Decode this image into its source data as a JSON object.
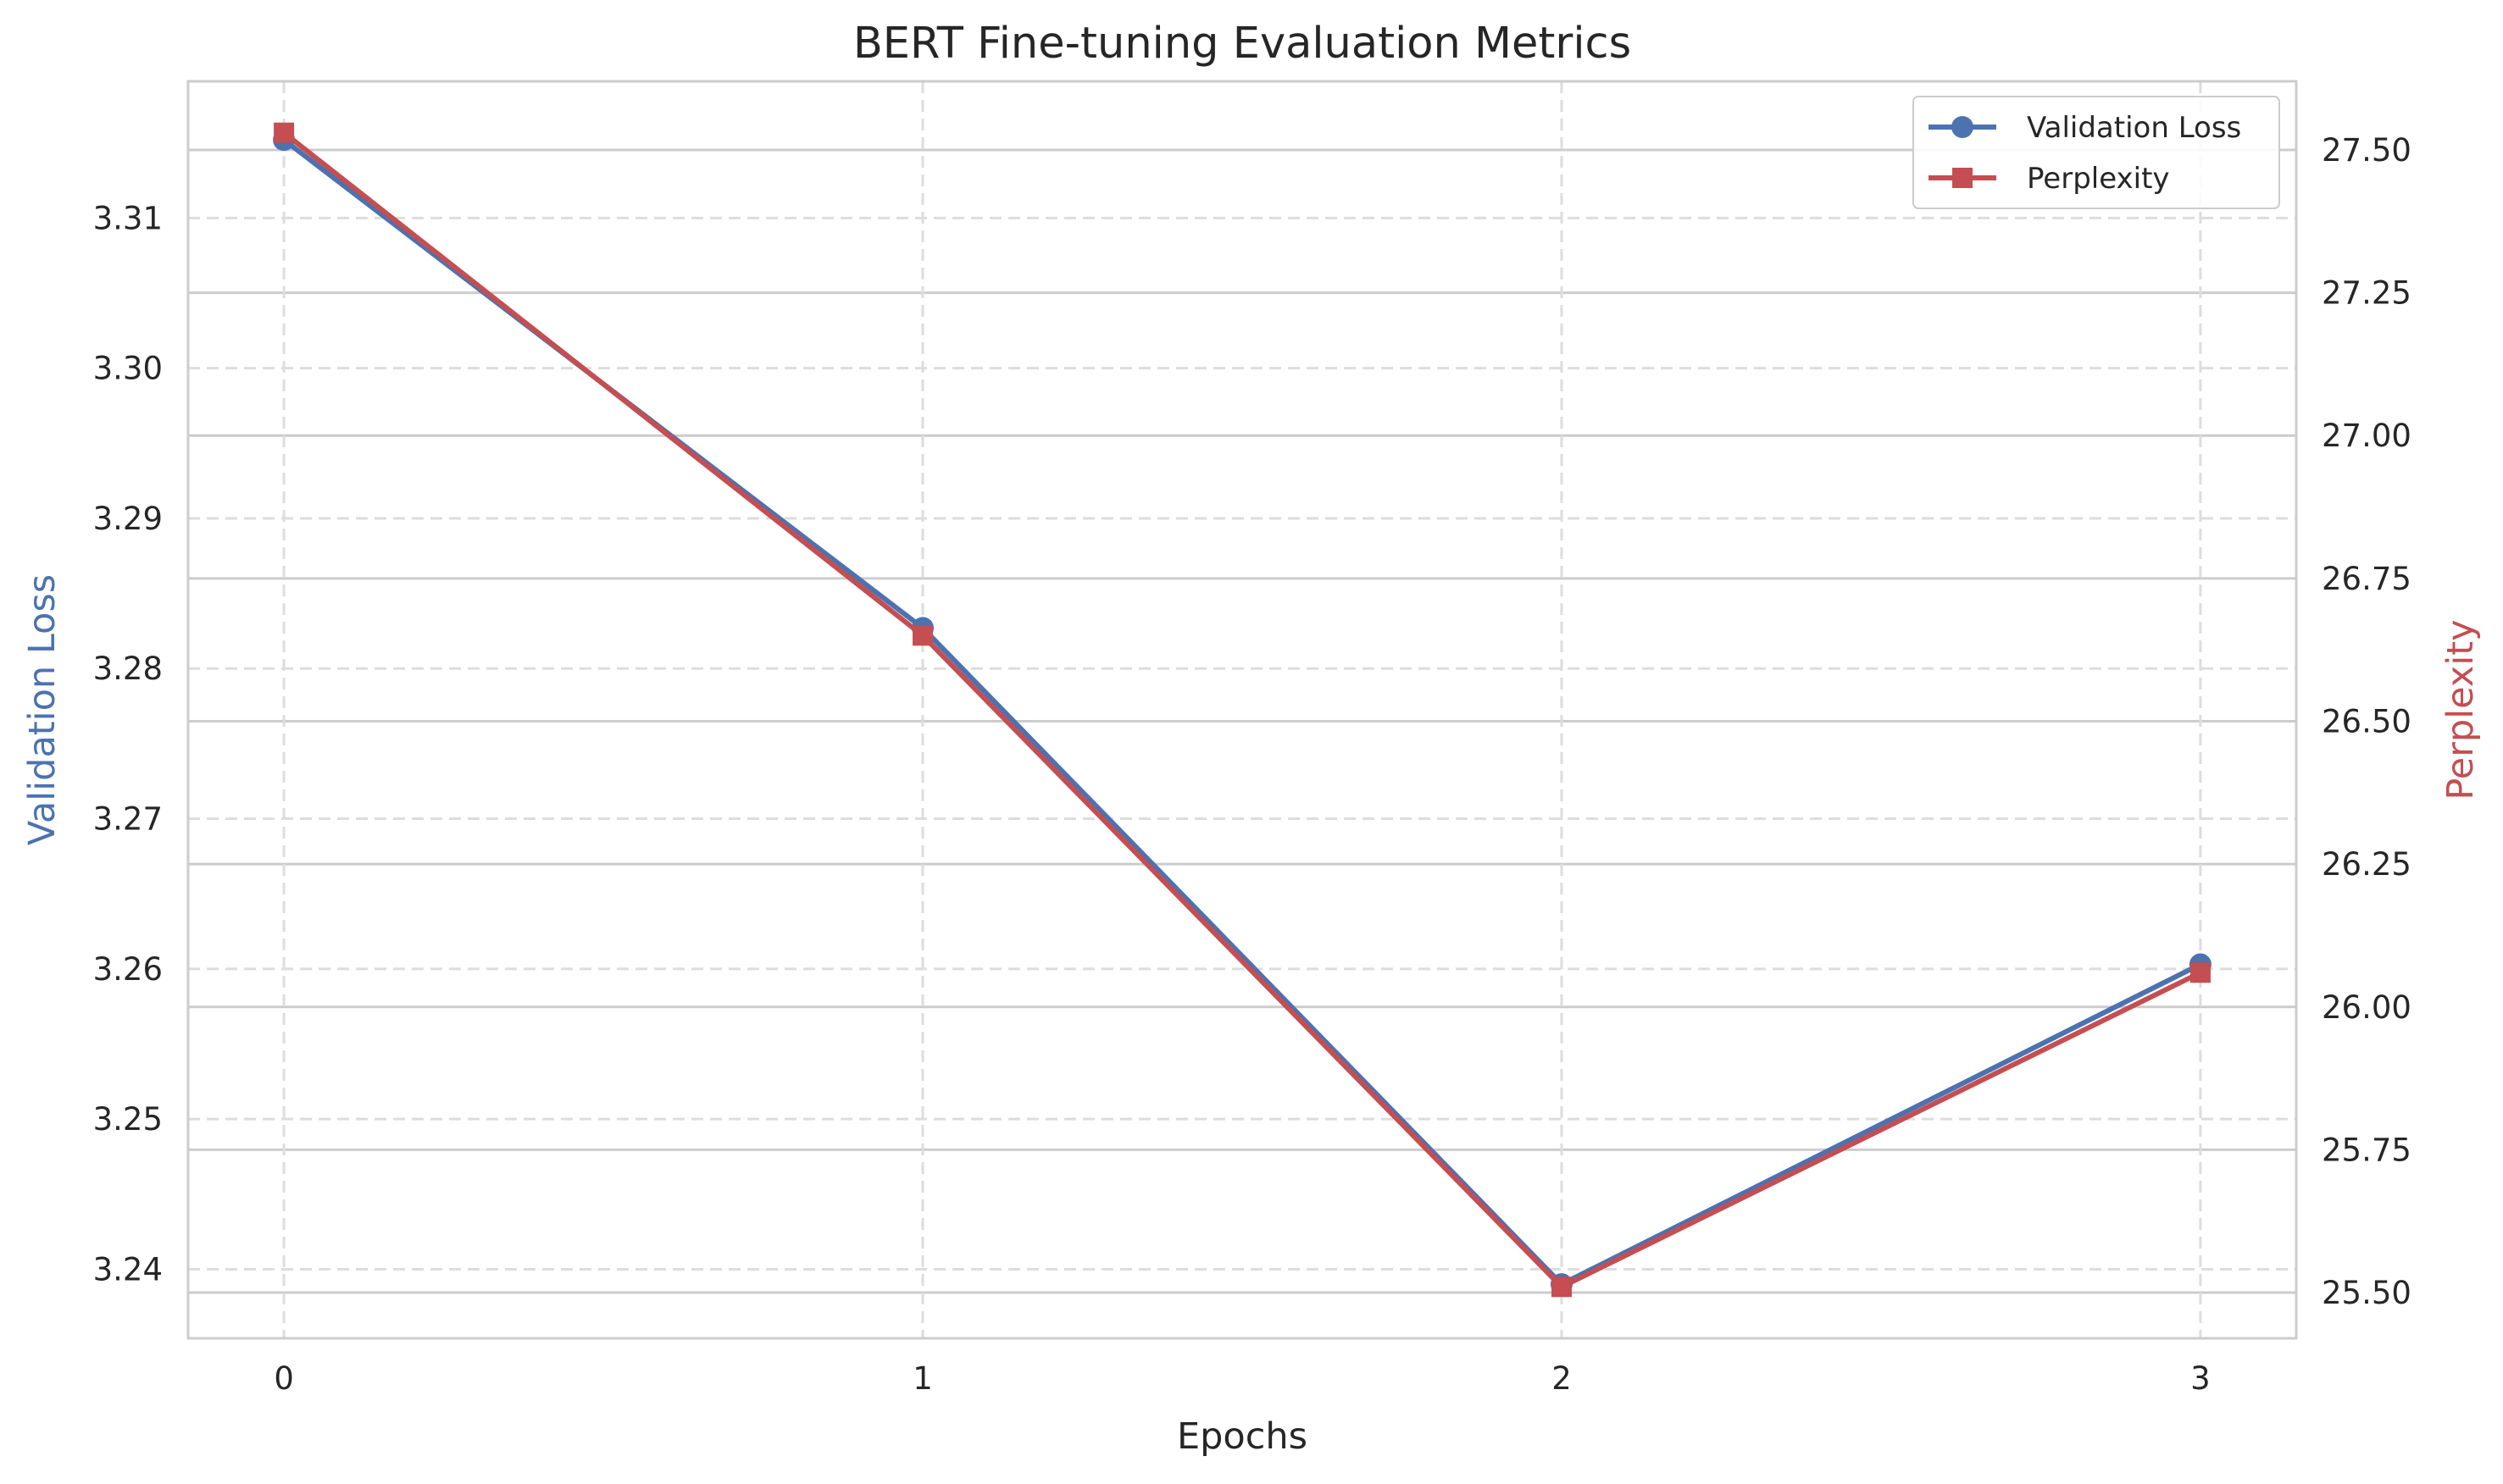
{
  "chart_data": {
    "type": "line",
    "title": "BERT Fine-tuning Evaluation Metrics",
    "xlabel": "Epochs",
    "x": [
      0,
      1,
      2,
      3
    ],
    "x_ticks": [
      "0",
      "1",
      "2",
      "3"
    ],
    "xlim": [
      -0.15,
      3.15
    ],
    "grid": true,
    "legend_position": "top-right",
    "axes": {
      "left": {
        "label": "Validation Loss",
        "color": "#4C72B0",
        "ylim": [
          3.2354,
          3.3191
        ],
        "ticks": [
          3.24,
          3.25,
          3.26,
          3.27,
          3.28,
          3.29,
          3.3,
          3.31
        ],
        "tick_labels": [
          "3.24",
          "3.25",
          "3.26",
          "3.27",
          "3.28",
          "3.29",
          "3.30",
          "3.31"
        ]
      },
      "right": {
        "label": "Perplexity",
        "color": "#C44E52",
        "ylim": [
          25.42,
          27.62
        ],
        "ticks": [
          25.5,
          25.75,
          26.0,
          26.25,
          26.5,
          26.75,
          27.0,
          27.25,
          27.5
        ],
        "tick_labels": [
          "25.50",
          "25.75",
          "26.00",
          "26.25",
          "26.50",
          "26.75",
          "27.00",
          "27.25",
          "27.50"
        ]
      }
    },
    "series": [
      {
        "name": "Validation Loss",
        "axis": "left",
        "marker": "circle",
        "color": "#4C72B0",
        "values": [
          3.3152,
          3.2827,
          3.239,
          3.2603
        ]
      },
      {
        "name": "Perplexity",
        "axis": "right",
        "marker": "square",
        "color": "#C44E52",
        "values": [
          27.53,
          26.65,
          25.51,
          26.06
        ]
      }
    ]
  }
}
